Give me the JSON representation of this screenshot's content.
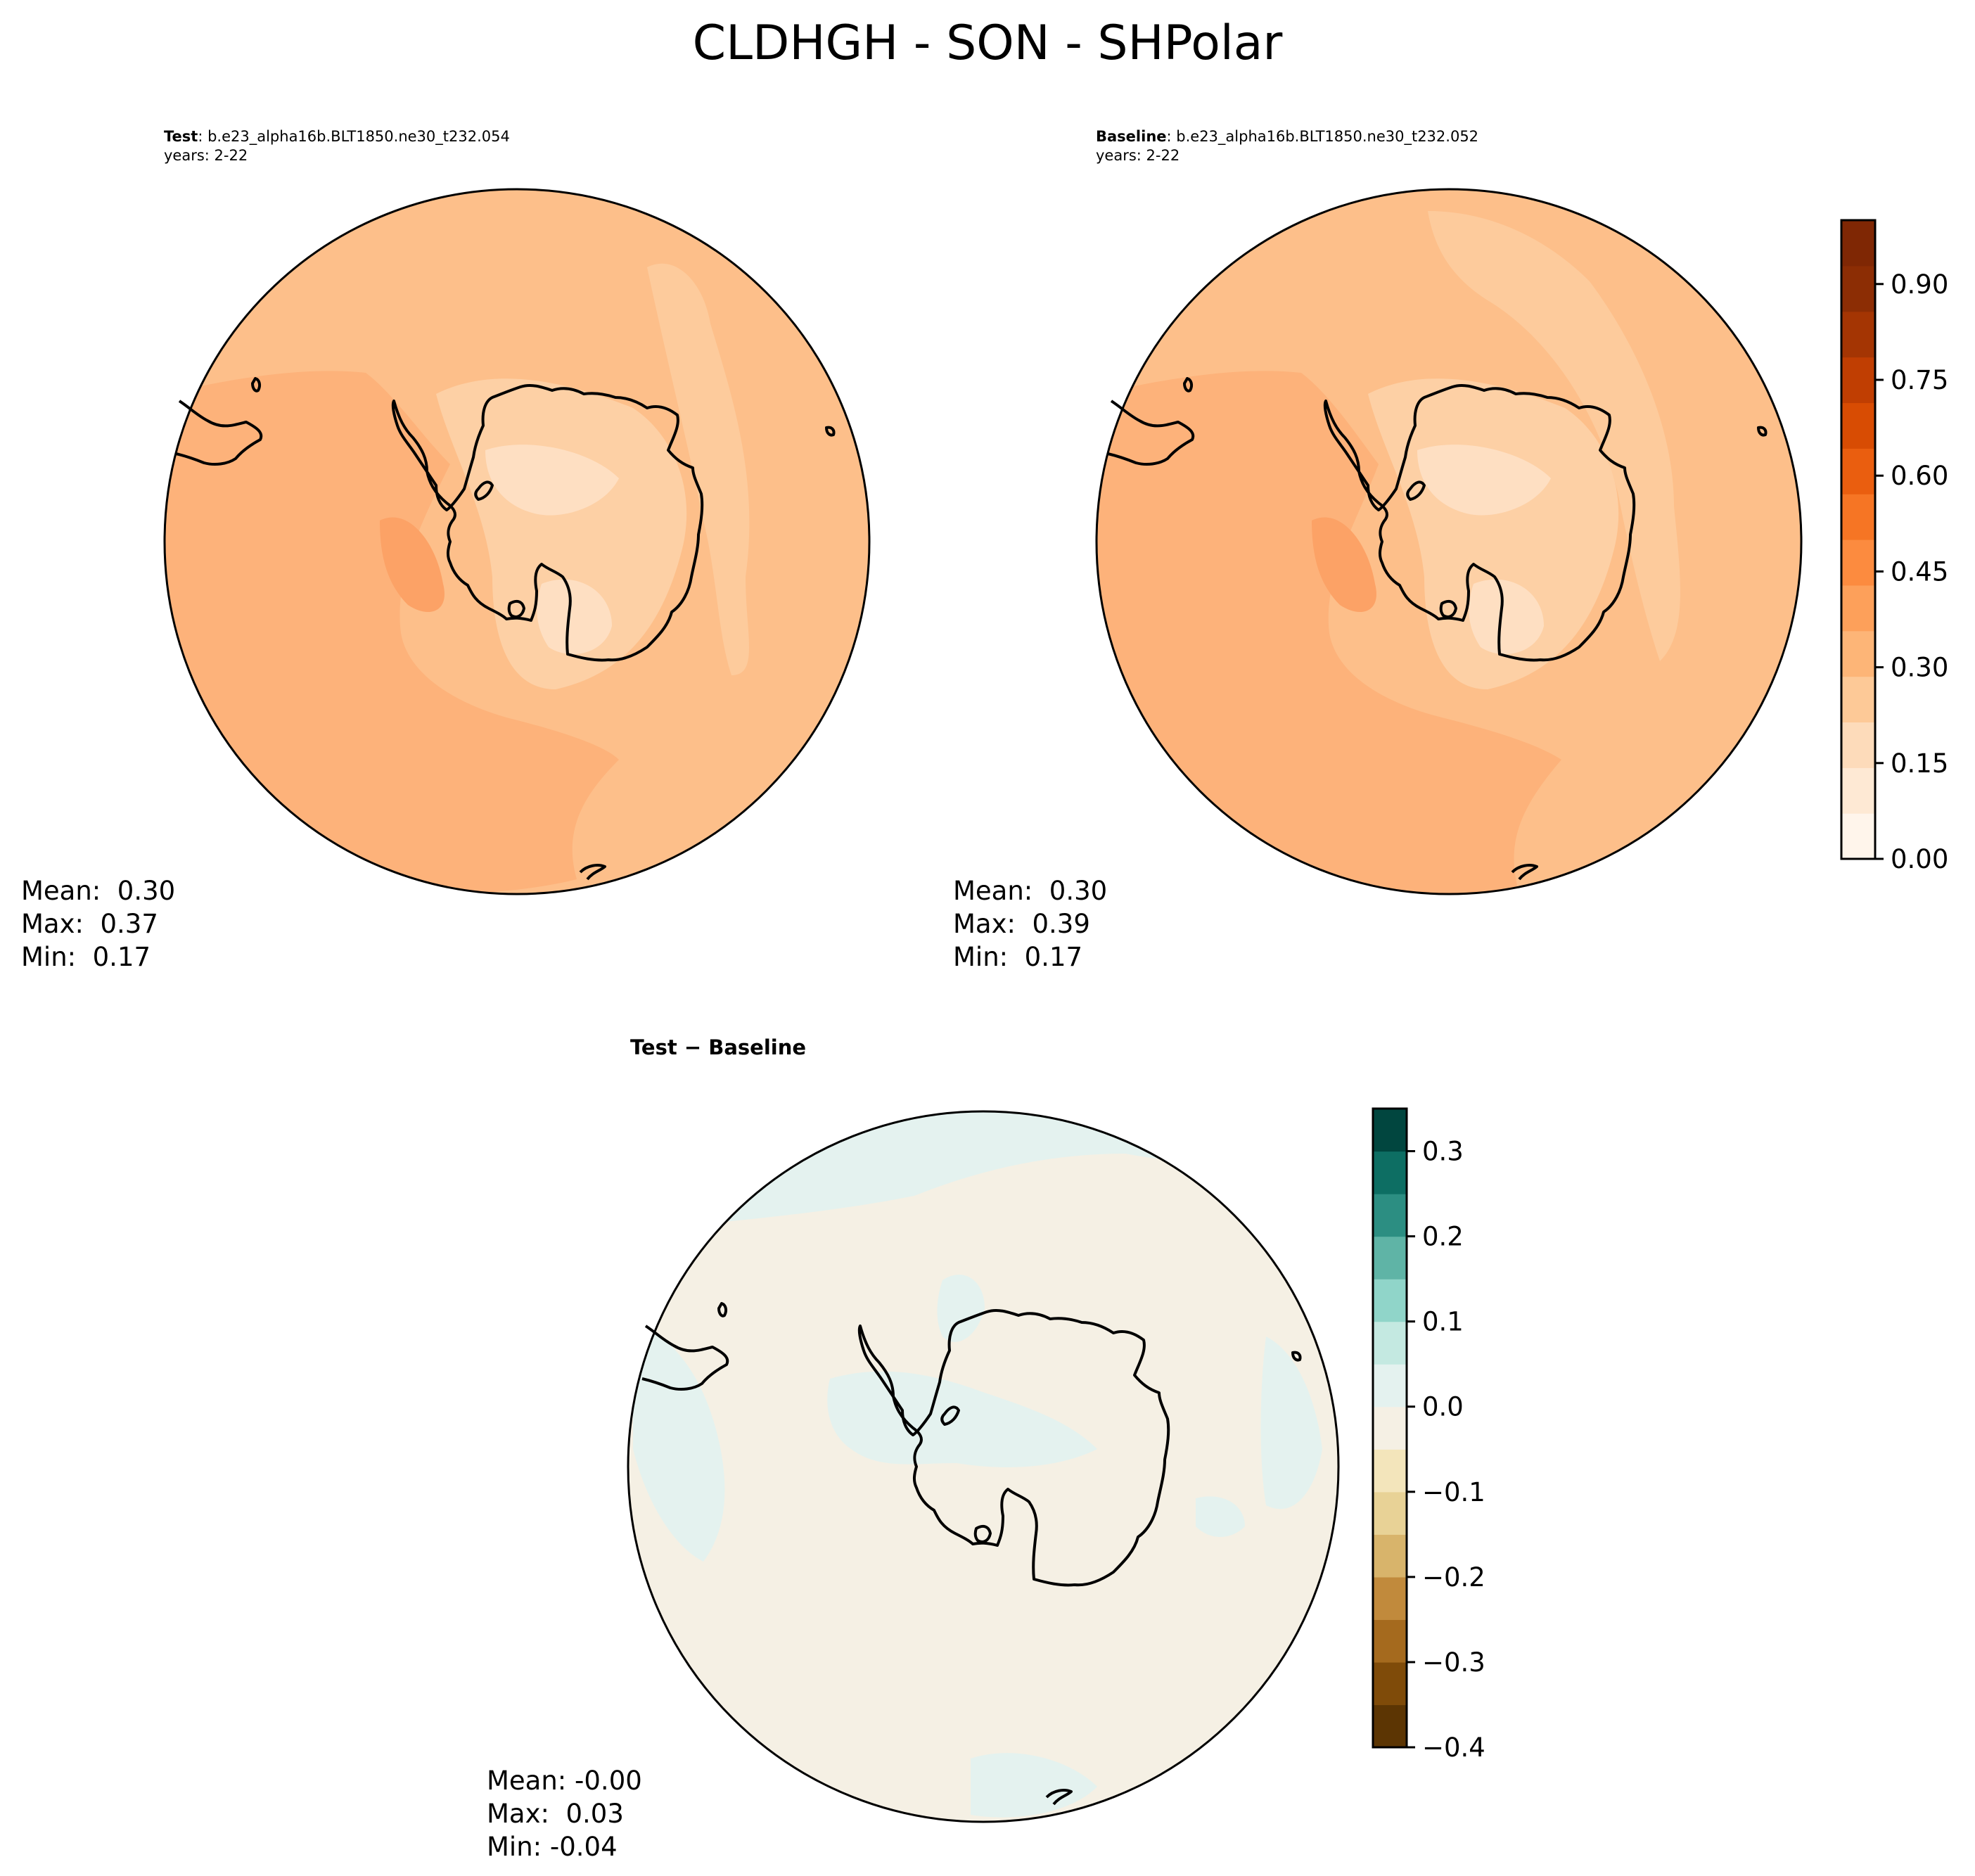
{
  "figure": {
    "title": "CLDHGH - SON - SHPolar"
  },
  "test_panel": {
    "title_label": "Test",
    "case_name": ": b.e23_alpha16b.BLT1850.ne30_t232.054",
    "years": "years: 2-22",
    "stats": {
      "mean": "Mean:  0.30",
      "max": "Max:  0.37",
      "min": "Min:  0.17"
    }
  },
  "baseline_panel": {
    "title_label": "Baseline",
    "case_name": ": b.e23_alpha16b.BLT1850.ne30_t232.052",
    "years": "years: 2-22",
    "stats": {
      "mean": "Mean:  0.30",
      "max": "Max:  0.39",
      "min": "Min:  0.17"
    }
  },
  "diff_panel": {
    "title": "Test − Baseline",
    "stats": {
      "mean": "Mean: -0.00",
      "max": "Max:  0.03",
      "min": "Min: -0.04"
    }
  },
  "colorbar_main": {
    "min": 0.0,
    "max": 1.0,
    "ticks": [
      0.0,
      0.15,
      0.3,
      0.45,
      0.6,
      0.75,
      0.9
    ],
    "tick_labels": [
      "0.00",
      "0.15",
      "0.30",
      "0.45",
      "0.60",
      "0.75",
      "0.90"
    ],
    "colors": [
      "#fff5eb",
      "#fee9d4",
      "#fddbba",
      "#fdc997",
      "#fdb577",
      "#fda05a",
      "#fc8b3f",
      "#f67524",
      "#ea5e0f",
      "#d84c03",
      "#c03e02",
      "#a43503",
      "#8c2d04",
      "#7f2704"
    ]
  },
  "colorbar_diff": {
    "min": -0.4,
    "max": 0.35,
    "ticks": [
      -0.4,
      -0.3,
      -0.2,
      -0.1,
      0.0,
      0.1,
      0.2,
      0.3
    ],
    "tick_labels": [
      "−0.4",
      "−0.3",
      "−0.2",
      "−0.1",
      "0.0",
      "0.1",
      "0.2",
      "0.3"
    ],
    "colors": [
      "#5c3503",
      "#7f4b09",
      "#a56a1e",
      "#c18a3c",
      "#d8b46b",
      "#e8d296",
      "#f3e5bb",
      "#f5f0e4",
      "#e4f2ef",
      "#c4e9e1",
      "#90d5c9",
      "#5fb4a6",
      "#2c8e82",
      "#0d6e63",
      "#01463f"
    ]
  },
  "map_colors": {
    "test_base": "#fdbf8a",
    "baseline_base": "#fdbf8a",
    "diff_base": "#f5f0e4",
    "diff_positive": "#e4f2ef"
  }
}
